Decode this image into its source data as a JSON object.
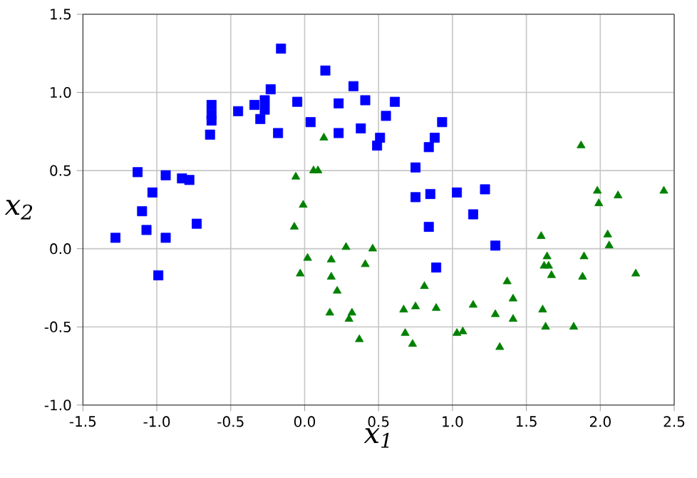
{
  "chart_data": {
    "type": "scatter",
    "xlabel": "x$_{1}$",
    "ylabel": "x$_{2}$",
    "grid": true,
    "xlim": [
      -1.5,
      2.5
    ],
    "ylim": [
      -1.0,
      1.5
    ],
    "xticks": [
      {
        "value": -1.5,
        "label": "-1.5"
      },
      {
        "value": -1.0,
        "label": "-1.0"
      },
      {
        "value": -0.5,
        "label": "-0.5"
      },
      {
        "value": 0.0,
        "label": "0.0"
      },
      {
        "value": 0.5,
        "label": "0.5"
      },
      {
        "value": 1.0,
        "label": "1.0"
      },
      {
        "value": 1.5,
        "label": "1.5"
      },
      {
        "value": 2.0,
        "label": "2.0"
      },
      {
        "value": 2.5,
        "label": "2.5"
      }
    ],
    "yticks": [
      {
        "value": -1.0,
        "label": "-1.0"
      },
      {
        "value": -0.5,
        "label": "-0.5"
      },
      {
        "value": 0.0,
        "label": "0.0"
      },
      {
        "value": 0.5,
        "label": "0.5"
      },
      {
        "value": 1.0,
        "label": "1.0"
      },
      {
        "value": 1.5,
        "label": "1.5"
      }
    ],
    "series": [
      {
        "color": "#0000ff",
        "marker": "square",
        "x": [
          -1.28,
          -1.13,
          -0.94,
          -0.83,
          -0.78,
          -1.03,
          -1.1,
          -1.07,
          -0.94,
          -0.73,
          -0.99,
          -0.63,
          -0.63,
          -0.63,
          -0.64,
          -0.45,
          -0.34,
          -0.27,
          -0.23,
          -0.3,
          -0.27,
          -0.18,
          -0.16,
          -0.05,
          0.04,
          0.14,
          0.23,
          0.23,
          0.33,
          0.41,
          0.38,
          0.61,
          0.55,
          0.51,
          0.49,
          0.93,
          0.88,
          0.84,
          0.75,
          0.75,
          0.85,
          1.03,
          1.22,
          1.14,
          0.84,
          1.29,
          0.89
        ],
        "values": [
          0.07,
          0.49,
          0.47,
          0.45,
          0.44,
          0.36,
          0.24,
          0.12,
          0.07,
          0.16,
          -0.17,
          0.92,
          0.86,
          0.82,
          0.73,
          0.88,
          0.92,
          0.95,
          1.02,
          0.83,
          0.89,
          0.74,
          1.28,
          0.94,
          0.81,
          1.14,
          0.93,
          0.74,
          1.04,
          0.95,
          0.77,
          0.94,
          0.85,
          0.71,
          0.66,
          0.81,
          0.71,
          0.65,
          0.52,
          0.33,
          0.35,
          0.36,
          0.38,
          0.22,
          0.14,
          0.02,
          -0.12
        ]
      },
      {
        "color": "#008000",
        "marker": "triangle",
        "x": [
          0.13,
          0.06,
          0.09,
          -0.06,
          -0.01,
          -0.07,
          0.02,
          -0.03,
          0.18,
          0.18,
          0.28,
          0.46,
          0.41,
          0.22,
          0.17,
          0.32,
          0.3,
          0.37,
          0.81,
          0.75,
          0.67,
          0.89,
          0.68,
          0.73,
          1.03,
          1.07,
          1.14,
          1.87,
          1.98,
          1.99,
          2.12,
          2.43,
          1.6,
          2.05,
          2.06,
          1.64,
          1.62,
          1.65,
          1.67,
          1.89,
          1.88,
          2.24,
          1.37,
          1.41,
          1.29,
          1.41,
          1.61,
          1.63,
          1.82,
          1.32
        ],
        "values": [
          0.71,
          0.5,
          0.5,
          0.46,
          0.28,
          0.14,
          -0.06,
          -0.16,
          -0.07,
          -0.18,
          0.01,
          0.0,
          -0.1,
          -0.27,
          -0.41,
          -0.41,
          -0.45,
          -0.58,
          -0.24,
          -0.37,
          -0.39,
          -0.38,
          -0.54,
          -0.61,
          -0.54,
          -0.53,
          -0.36,
          0.66,
          0.37,
          0.29,
          0.34,
          0.37,
          0.08,
          0.09,
          0.02,
          -0.05,
          -0.11,
          -0.11,
          -0.17,
          -0.05,
          -0.18,
          -0.16,
          -0.21,
          -0.32,
          -0.42,
          -0.45,
          -0.39,
          -0.5,
          -0.5,
          -0.63
        ]
      }
    ]
  }
}
